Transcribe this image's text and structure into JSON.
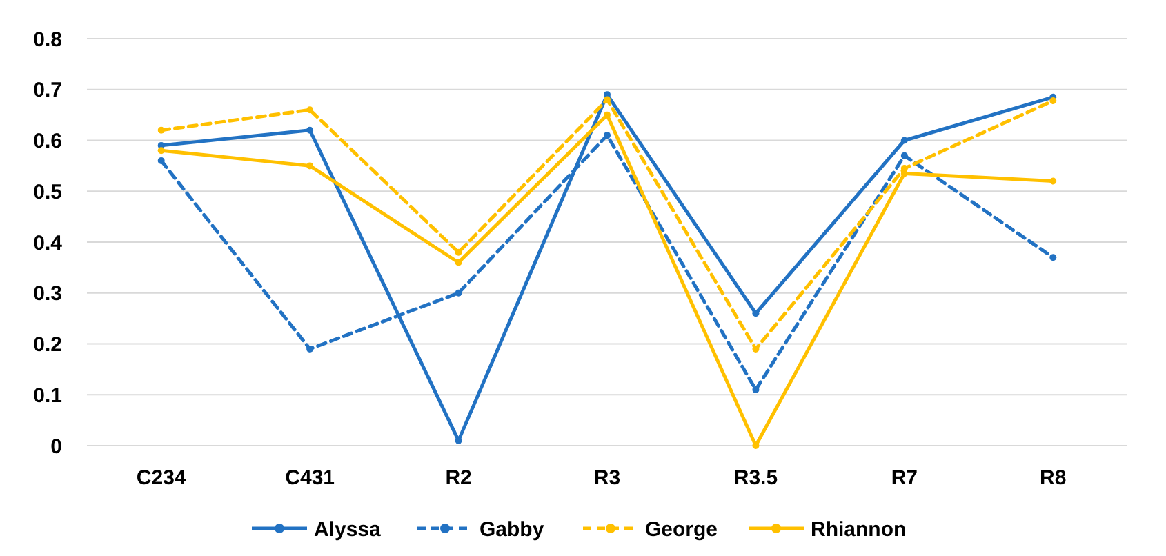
{
  "chart_data": {
    "type": "line",
    "categories": [
      "C234",
      "C431",
      "R2",
      "R3",
      "R3.5",
      "R7",
      "R8"
    ],
    "series": [
      {
        "name": "Alyssa",
        "color": "#2272c3",
        "line_style": "solid",
        "values": [
          0.59,
          0.62,
          0.01,
          0.69,
          0.26,
          0.6,
          0.685
        ]
      },
      {
        "name": "Gabby",
        "color": "#2272c3",
        "line_style": "dashed",
        "values": [
          0.56,
          0.19,
          0.3,
          0.61,
          0.11,
          0.57,
          0.37
        ]
      },
      {
        "name": "George",
        "color": "#ffc000",
        "line_style": "dashed",
        "values": [
          0.62,
          0.66,
          0.38,
          0.68,
          0.19,
          0.545,
          0.678
        ]
      },
      {
        "name": "Rhiannon",
        "color": "#ffc000",
        "line_style": "solid",
        "values": [
          0.58,
          0.55,
          0.36,
          0.65,
          0.0,
          0.535,
          0.52
        ]
      }
    ],
    "ylim": [
      0,
      0.8
    ],
    "yticks": [
      0,
      0.1,
      0.2,
      0.3,
      0.4,
      0.5,
      0.6,
      0.7,
      0.8
    ],
    "grid": "y",
    "legend": "bottom",
    "marker": "circle"
  }
}
